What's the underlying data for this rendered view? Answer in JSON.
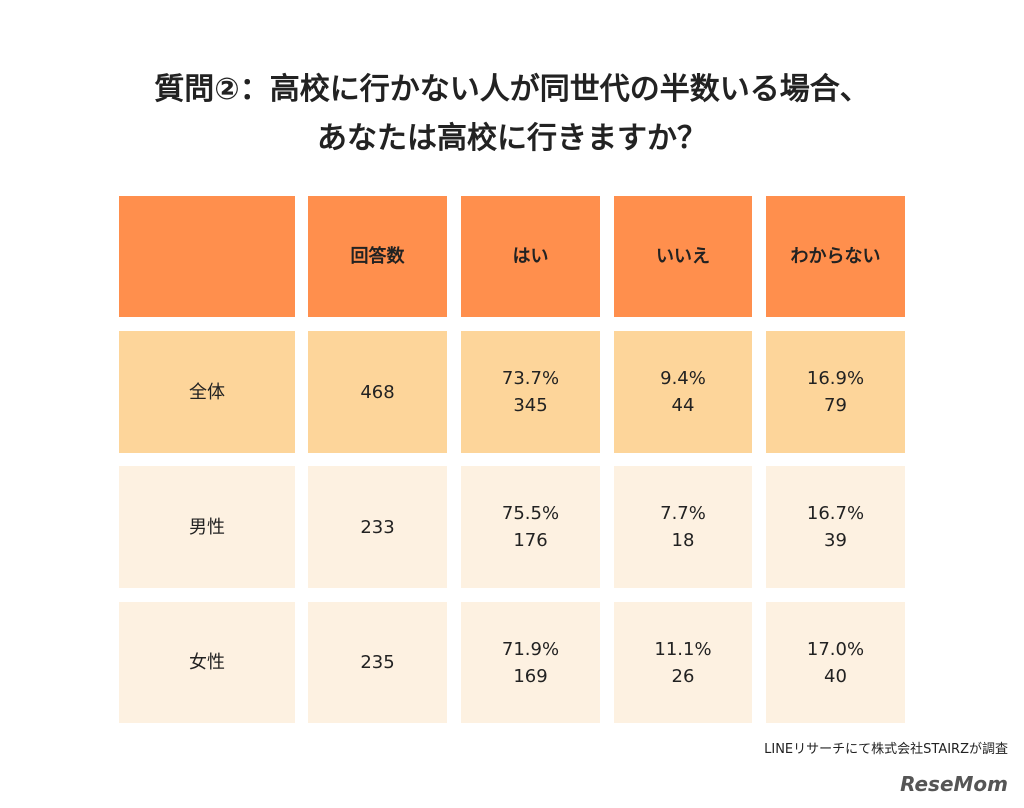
{
  "title": {
    "line1": "質問②：高校に行かない人が同世代の半数いる場合、",
    "line2": "あなたは高校に行きますか？"
  },
  "table": {
    "header": [
      "回答数",
      "はい",
      "いいえ",
      "わからない"
    ],
    "rows": [
      {
        "label": "全体",
        "count": "468",
        "answers": [
          {
            "percent": "73.7%",
            "count": "345"
          },
          {
            "percent": "9.4%",
            "count": "44"
          },
          {
            "percent": "16.9%",
            "count": "79"
          }
        ]
      },
      {
        "label": "男性",
        "count": "233",
        "answers": [
          {
            "percent": "75.5%",
            "count": "176"
          },
          {
            "percent": "7.7%",
            "count": "18"
          },
          {
            "percent": "16.7%",
            "count": "39"
          }
        ]
      },
      {
        "label": "女性",
        "count": "235",
        "answers": [
          {
            "percent": "71.9%",
            "count": "169"
          },
          {
            "percent": "11.1%",
            "count": "26"
          },
          {
            "percent": "17.0%",
            "count": "40"
          }
        ]
      }
    ]
  },
  "source": "LINEリサーチにて株式会社STAIRZが調査",
  "logo": "ReseMom"
}
